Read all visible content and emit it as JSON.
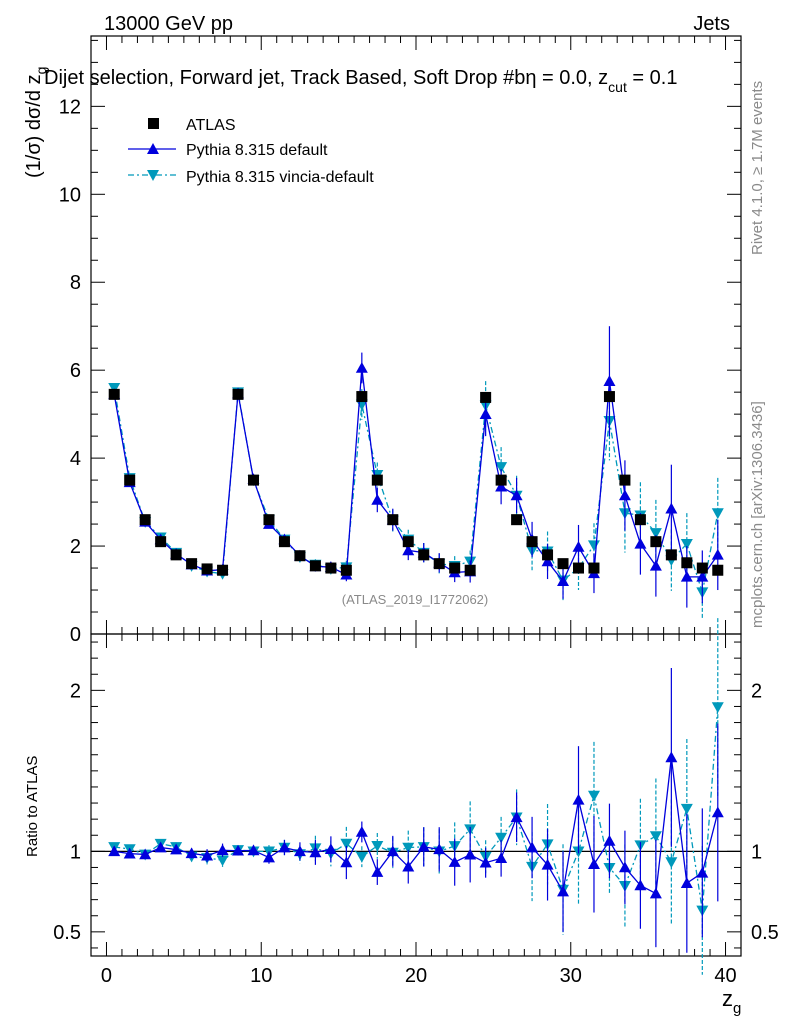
{
  "header": {
    "left_label": "13000 GeV pp",
    "right_label": "Jets",
    "title": "Dijet selection, Forward jet, Track Based, Soft Drop #b",
    "title_eta": "η = 0.0, z",
    "title_sub": "cut",
    "title_tail": " = 0.1"
  },
  "side_labels": {
    "rivet": "Rivet 4.1.0, ≥ 1.7M events",
    "mcplots": "mcplots.cern.ch [arXiv:1306.3436]"
  },
  "watermark": "(ATLAS_2019_I1772062)",
  "chart_data": {
    "type": "scatter",
    "xlabel": "z",
    "xlabel_sub": "g",
    "ylabel_main": "(1/σ) dσ/d z",
    "ylabel_main_sub": "g",
    "ylabel_ratio": "Ratio to ATLAS",
    "xlim": [
      -1,
      41
    ],
    "ylim_main": [
      0,
      13.6
    ],
    "ylim_ratio": [
      0.35,
      2.35
    ],
    "x_ticks": [
      "0",
      "10",
      "20",
      "30",
      "40"
    ],
    "y_ticks_main": [
      "0",
      "2",
      "4",
      "6",
      "8",
      "10",
      "12"
    ],
    "y_ticks_ratio": [
      "0.5",
      "1",
      "2"
    ],
    "legend": [
      {
        "label": "ATLAS",
        "color": "#000000",
        "marker": "square"
      },
      {
        "label": "Pythia 8.315 default",
        "color": "#0000dd",
        "marker": "triangle-up"
      },
      {
        "label": "Pythia 8.315 vincia-default",
        "color": "#0099bb",
        "marker": "triangle-down"
      }
    ],
    "x": [
      0.5,
      1.5,
      2.5,
      3.5,
      4.5,
      5.5,
      6.5,
      7.5,
      8.5,
      9.5,
      10.5,
      11.5,
      12.5,
      13.5,
      14.5,
      15.5,
      16.5,
      17.5,
      18.5,
      19.5,
      20.5,
      21.5,
      22.5,
      23.5,
      24.5,
      25.5,
      26.5,
      27.5,
      28.5,
      29.5,
      30.5,
      31.5,
      32.5,
      33.5,
      34.5,
      35.5,
      36.5,
      37.5,
      38.5,
      39.5
    ],
    "series": [
      {
        "name": "ATLAS",
        "values": [
          5.45,
          3.5,
          2.6,
          2.1,
          1.8,
          1.6,
          1.48,
          1.45,
          5.45,
          3.5,
          2.6,
          2.1,
          1.78,
          1.55,
          1.5,
          1.45,
          5.4,
          3.5,
          2.6,
          2.1,
          1.8,
          1.6,
          1.5,
          1.45,
          5.38,
          3.5,
          2.6,
          2.1,
          1.8,
          1.6,
          1.5,
          1.5,
          5.4,
          3.5,
          2.6,
          2.1,
          1.8,
          1.62,
          1.5,
          1.45
        ]
      },
      {
        "name": "Pythia 8.315 default",
        "values": [
          5.45,
          3.45,
          2.55,
          2.15,
          1.82,
          1.58,
          1.44,
          1.46,
          5.47,
          3.52,
          2.5,
          2.15,
          1.78,
          1.54,
          1.52,
          1.35,
          6.05,
          3.05,
          2.6,
          1.9,
          1.85,
          1.62,
          1.4,
          1.42,
          5.0,
          3.35,
          3.15,
          2.15,
          1.65,
          1.2,
          1.98,
          1.38,
          5.75,
          3.15,
          2.05,
          1.55,
          2.85,
          1.3,
          1.3,
          1.8
        ],
        "errors": [
          0.04,
          0.05,
          0.05,
          0.05,
          0.05,
          0.05,
          0.06,
          0.06,
          0.06,
          0.08,
          0.1,
          0.1,
          0.1,
          0.12,
          0.12,
          0.15,
          0.35,
          0.28,
          0.25,
          0.22,
          0.22,
          0.22,
          0.22,
          0.25,
          0.5,
          0.4,
          0.4,
          0.4,
          0.4,
          0.4,
          0.5,
          0.45,
          1.25,
          0.8,
          0.7,
          0.7,
          1.0,
          0.7,
          0.6,
          0.8
        ]
      },
      {
        "name": "Pythia 8.315 vincia-default",
        "values": [
          5.6,
          3.55,
          2.55,
          2.2,
          1.85,
          1.55,
          1.42,
          1.37,
          5.5,
          3.5,
          2.6,
          2.15,
          1.75,
          1.58,
          1.48,
          1.52,
          5.22,
          3.62,
          2.58,
          2.15,
          1.85,
          1.6,
          1.55,
          1.65,
          5.2,
          3.8,
          3.15,
          1.9,
          1.88,
          1.22,
          1.5,
          2.02,
          4.85,
          2.75,
          2.7,
          2.3,
          1.68,
          2.05,
          0.95,
          2.75
        ],
        "errors": [
          0.04,
          0.05,
          0.05,
          0.05,
          0.05,
          0.05,
          0.06,
          0.06,
          0.06,
          0.08,
          0.1,
          0.1,
          0.1,
          0.12,
          0.12,
          0.15,
          0.35,
          0.28,
          0.25,
          0.22,
          0.22,
          0.22,
          0.22,
          0.25,
          0.55,
          0.45,
          0.45,
          0.45,
          0.45,
          0.45,
          0.5,
          0.5,
          0.9,
          0.9,
          0.75,
          0.75,
          0.7,
          0.7,
          0.6,
          0.8
        ]
      }
    ]
  }
}
